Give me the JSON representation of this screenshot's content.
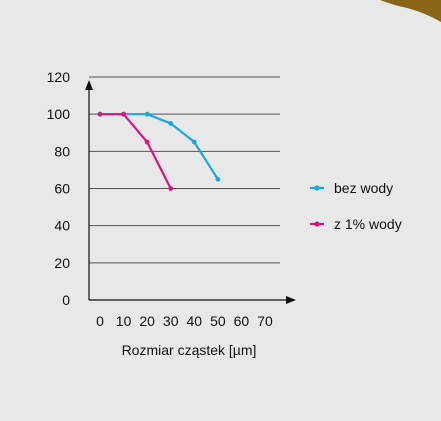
{
  "chart_data": {
    "type": "line",
    "xlabel": "Rozmiar cząstek [µm]",
    "ylabel": "",
    "x_ticks": [
      "0",
      "10",
      "20",
      "30",
      "40",
      "50",
      "60",
      "70"
    ],
    "y_ticks": [
      "0",
      "20",
      "40",
      "60",
      "80",
      "100",
      "120"
    ],
    "xlim": [
      0,
      70
    ],
    "ylim": [
      0,
      120
    ],
    "grid": "horizontal",
    "legend_position": "right",
    "series": [
      {
        "name": "bez wody",
        "color": "#1aa7e0",
        "points": [
          [
            0,
            100
          ],
          [
            10,
            100
          ],
          [
            20,
            100
          ],
          [
            30,
            95
          ],
          [
            40,
            85
          ],
          [
            50,
            65
          ]
        ]
      },
      {
        "name": "z 1% wody",
        "color": "#e0127a",
        "points": [
          [
            0,
            100
          ],
          [
            10,
            100
          ],
          [
            20,
            85
          ],
          [
            30,
            60
          ]
        ]
      }
    ]
  },
  "decor": {
    "corner_color": "#8a6418"
  }
}
